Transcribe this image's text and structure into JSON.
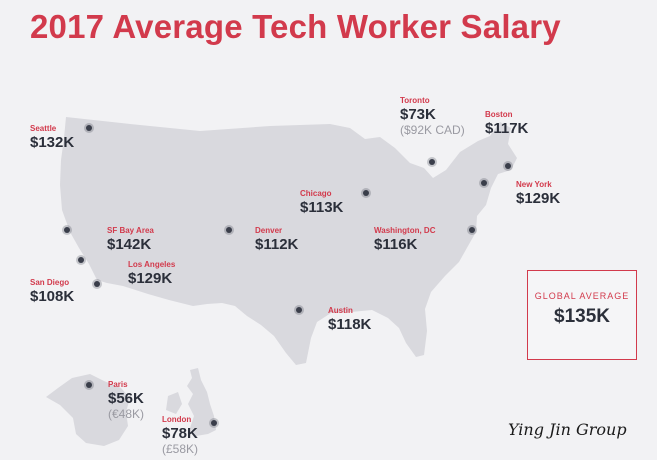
{
  "title": "2017 Average Tech Worker Salary",
  "cities": [
    {
      "name": "Seattle",
      "salary": "$132K"
    },
    {
      "name": "Toronto",
      "salary": "$73K",
      "local": "($92K CAD)"
    },
    {
      "name": "Boston",
      "salary": "$117K"
    },
    {
      "name": "Chicago",
      "salary": "$113K"
    },
    {
      "name": "New York",
      "salary": "$129K"
    },
    {
      "name": "SF Bay Area",
      "salary": "$142K"
    },
    {
      "name": "Denver",
      "salary": "$112K"
    },
    {
      "name": "Washington, DC",
      "salary": "$116K"
    },
    {
      "name": "Los Angeles",
      "salary": "$129K"
    },
    {
      "name": "San Diego",
      "salary": "$108K"
    },
    {
      "name": "Austin",
      "salary": "$118K"
    },
    {
      "name": "Paris",
      "salary": "$56K",
      "local": "(€48K)"
    },
    {
      "name": "London",
      "salary": "$78K",
      "local": "(£58K)"
    }
  ],
  "global": {
    "label": "GLOBAL AVERAGE",
    "value": "$135K"
  },
  "watermark": "Ying Jin Group",
  "colors": {
    "accent": "#d23a4c",
    "text": "#2b2f3a",
    "land": "#d9d9de",
    "background": "#f2f2f4"
  }
}
